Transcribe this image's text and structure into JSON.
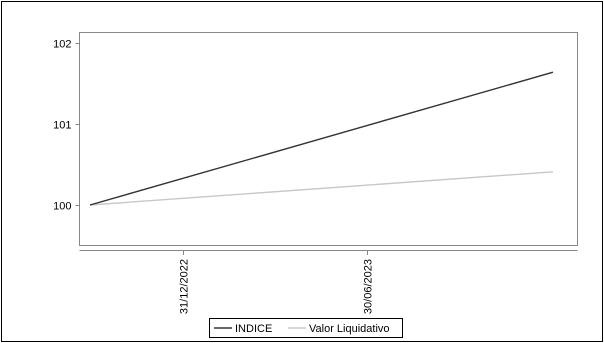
{
  "chart_data": {
    "type": "line",
    "title": "",
    "xlabel": "",
    "ylabel": "",
    "x_ticks": [
      "31/12/2022",
      "30/06/2023"
    ],
    "y_ticks": [
      "100",
      "101",
      "102"
    ],
    "ylim": [
      99.5,
      102.1
    ],
    "x": [
      "2022-09-30",
      "2023-12-31"
    ],
    "series": [
      {
        "name": "INDICE",
        "values": [
          100,
          101.64
        ],
        "color": "#333333"
      },
      {
        "name": "Valor Liquidativo",
        "values": [
          100,
          100.41
        ],
        "color": "#c8c8c8"
      }
    ],
    "grid": false,
    "legend_position": "bottom"
  }
}
